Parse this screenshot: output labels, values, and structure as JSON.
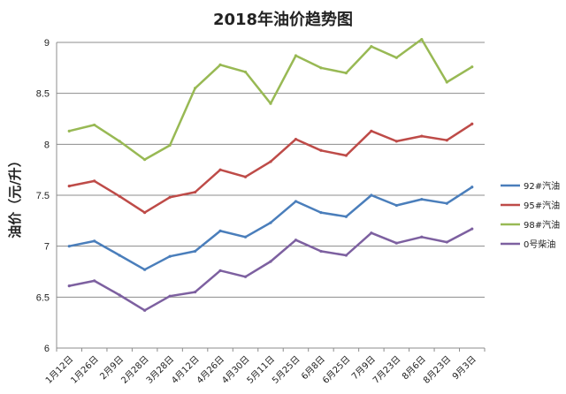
{
  "chart_data": {
    "type": "line",
    "title": "2018年油价趋势图",
    "xlabel": "",
    "ylabel": "油价（元/升）",
    "ylim": [
      6,
      9
    ],
    "yticks": [
      "6",
      "6.5",
      "7",
      "7.5",
      "8",
      "8.5",
      "9"
    ],
    "grid": true,
    "legend_position": "right",
    "categories": [
      "1月12日",
      "1月26日",
      "2月9日",
      "2月28日",
      "3月28日",
      "4月12日",
      "4月26日",
      "4月30日",
      "5月11日",
      "5月25日",
      "6月8日",
      "6月25日",
      "7月9日",
      "7月23日",
      "8月6日",
      "8月23日",
      "9月3日"
    ],
    "series": [
      {
        "name": "92#汽油",
        "color": "#4a7ebb",
        "values": [
          7.0,
          7.05,
          6.91,
          6.77,
          6.9,
          6.95,
          7.15,
          7.09,
          7.23,
          7.44,
          7.33,
          7.29,
          7.5,
          7.4,
          7.46,
          7.42,
          7.58
        ]
      },
      {
        "name": "95#汽油",
        "color": "#be4b48",
        "values": [
          7.59,
          7.64,
          7.49,
          7.33,
          7.48,
          7.53,
          7.75,
          7.68,
          7.83,
          8.05,
          7.94,
          7.89,
          8.13,
          8.03,
          8.08,
          8.04,
          8.2
        ]
      },
      {
        "name": "98#汽油",
        "color": "#98b954",
        "values": [
          8.13,
          8.19,
          8.03,
          7.85,
          7.99,
          8.55,
          8.78,
          8.71,
          8.4,
          8.87,
          8.75,
          8.7,
          8.96,
          8.85,
          9.03,
          8.61,
          8.76
        ]
      },
      {
        "name": "0号柴油",
        "color": "#7d60a0",
        "values": [
          6.61,
          6.66,
          6.52,
          6.37,
          6.51,
          6.55,
          6.76,
          6.7,
          6.85,
          7.06,
          6.95,
          6.91,
          7.13,
          7.03,
          7.09,
          7.04,
          7.17
        ]
      }
    ]
  }
}
